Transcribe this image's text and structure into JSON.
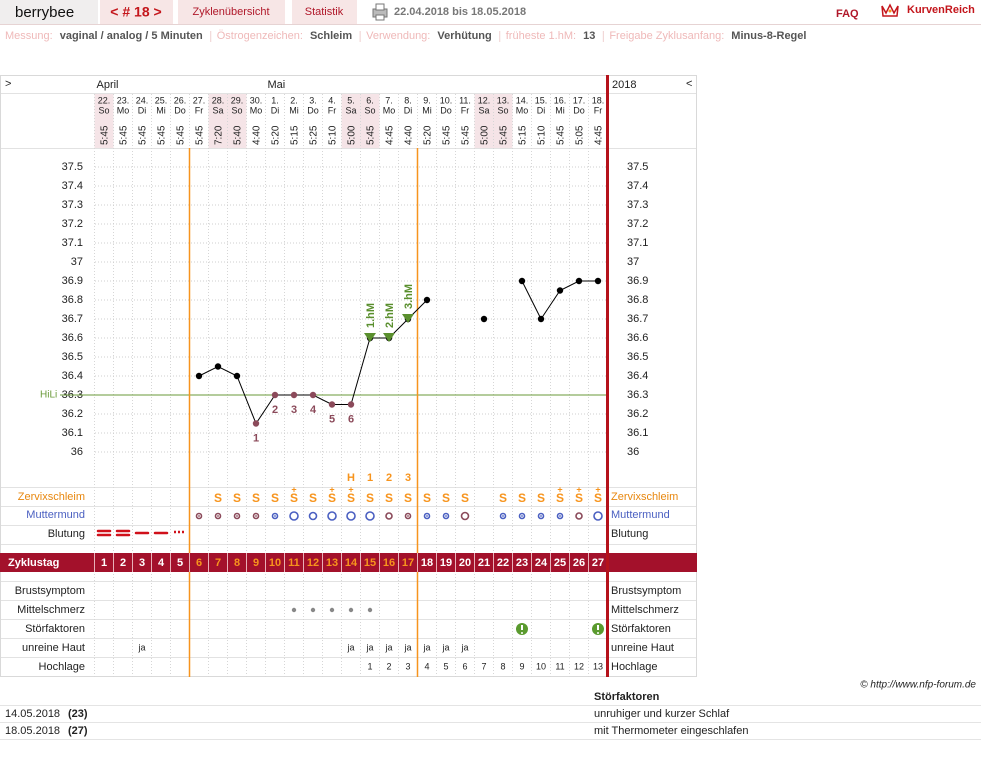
{
  "header": {
    "app": "berrybee",
    "cycle": "< # 18 >",
    "tabs": [
      "Zyklenübersicht",
      "Statistik"
    ],
    "date_range": "22.04.2018 bis 18.05.2018",
    "faq": "FAQ",
    "brand": "KurvenReich"
  },
  "settings": [
    {
      "label": "Messung:",
      "value": "vaginal / analog / 5 Minuten"
    },
    {
      "label": "Östrogenzeichen:",
      "value": "Schleim"
    },
    {
      "label": "Verwendung:",
      "value": "Verhütung"
    },
    {
      "label": "früheste 1.hM:",
      "value": "13"
    },
    {
      "label": "Freigabe Zyklusanfang:",
      "value": "Minus-8-Regel"
    }
  ],
  "chart_data": {
    "type": "line",
    "nav": [
      ">",
      "<"
    ],
    "year": "2018",
    "months": [
      {
        "name": "April",
        "days": [
          {
            "date": "22.",
            "weekday": "So",
            "time": "5:45",
            "shaded": true
          },
          {
            "date": "23.",
            "weekday": "Mo",
            "time": "5:45",
            "shaded": false
          },
          {
            "date": "24.",
            "weekday": "Di",
            "time": "5:45",
            "shaded": false
          },
          {
            "date": "25.",
            "weekday": "Mi",
            "time": "5:45",
            "shaded": false
          },
          {
            "date": "26.",
            "weekday": "Do",
            "time": "5:45",
            "shaded": false
          },
          {
            "date": "27.",
            "weekday": "Fr",
            "time": "5:45",
            "shaded": false
          },
          {
            "date": "28.",
            "weekday": "Sa",
            "time": "7:20",
            "shaded": true
          },
          {
            "date": "29.",
            "weekday": "So",
            "time": "5:40",
            "shaded": true
          },
          {
            "date": "30.",
            "weekday": "Mo",
            "time": "4:40",
            "shaded": false
          }
        ]
      },
      {
        "name": "Mai",
        "days": [
          {
            "date": "1.",
            "weekday": "Di",
            "time": "5:20",
            "shaded": false
          },
          {
            "date": "2.",
            "weekday": "Mi",
            "time": "5:15",
            "shaded": false
          },
          {
            "date": "3.",
            "weekday": "Do",
            "time": "5:25",
            "shaded": false
          },
          {
            "date": "4.",
            "weekday": "Fr",
            "time": "5:10",
            "shaded": false
          },
          {
            "date": "5.",
            "weekday": "Sa",
            "time": "5:00",
            "shaded": true
          },
          {
            "date": "6.",
            "weekday": "So",
            "time": "5:45",
            "shaded": true
          },
          {
            "date": "7.",
            "weekday": "Mo",
            "time": "4:45",
            "shaded": false
          },
          {
            "date": "8.",
            "weekday": "Di",
            "time": "4:40",
            "shaded": false
          },
          {
            "date": "9.",
            "weekday": "Mi",
            "time": "5:20",
            "shaded": false
          },
          {
            "date": "10.",
            "weekday": "Do",
            "time": "5:45",
            "shaded": false
          },
          {
            "date": "11.",
            "weekday": "Fr",
            "time": "5:45",
            "shaded": false
          },
          {
            "date": "12.",
            "weekday": "Sa",
            "time": "5:00",
            "shaded": true
          },
          {
            "date": "13.",
            "weekday": "So",
            "time": "5:45",
            "shaded": true
          },
          {
            "date": "14.",
            "weekday": "Mo",
            "time": "5:15",
            "shaded": false
          },
          {
            "date": "15.",
            "weekday": "Di",
            "time": "5:10",
            "shaded": false
          },
          {
            "date": "16.",
            "weekday": "Mi",
            "time": "5:45",
            "shaded": false
          },
          {
            "date": "17.",
            "weekday": "Do",
            "time": "5:05",
            "shaded": false
          },
          {
            "date": "18.",
            "weekday": "Fr",
            "time": "4:45",
            "shaded": false
          }
        ]
      }
    ],
    "ylim": [
      35.9,
      37.6
    ],
    "yticks": [
      36,
      36.1,
      36.2,
      36.3,
      36.4,
      36.5,
      36.6,
      36.7,
      36.8,
      36.9,
      37,
      37.1,
      37.2,
      37.3,
      37.4,
      37.5
    ],
    "grid": true,
    "color": "#000000",
    "low_color": "#8b4a5a",
    "hm_color": "#5a8f2e",
    "values": [
      null,
      null,
      null,
      null,
      null,
      36.4,
      36.45,
      36.4,
      36.15,
      36.3,
      36.3,
      36.3,
      36.25,
      36.25,
      36.6,
      36.6,
      36.7,
      36.8,
      null,
      null,
      36.7,
      null,
      36.9,
      36.7,
      36.85,
      36.9,
      36.9
    ],
    "low_labels": [
      null,
      null,
      null,
      null,
      null,
      null,
      null,
      null,
      "1",
      "2",
      "3",
      "4",
      "5",
      "6",
      null,
      null,
      null,
      null,
      null,
      null,
      null,
      null,
      null,
      null,
      null,
      null,
      null
    ],
    "high_labels": [
      null,
      null,
      null,
      null,
      null,
      null,
      null,
      null,
      null,
      null,
      null,
      null,
      null,
      null,
      "1.hM",
      "2.hM",
      "3.hM",
      null,
      null,
      null,
      null,
      null,
      null,
      null,
      null,
      null,
      null
    ],
    "hili": {
      "label": "HiLi",
      "value": 36.3,
      "color": "#6a9a3a"
    },
    "peak_labels": [
      null,
      null,
      null,
      null,
      null,
      null,
      null,
      null,
      null,
      null,
      null,
      null,
      null,
      "H",
      "1",
      "2",
      "3",
      null,
      null,
      null,
      null,
      null,
      null,
      null,
      null,
      null,
      null
    ],
    "row_labels": {
      "mucus": "Zervixschleim",
      "cervix": "Muttermund",
      "bleeding": "Blutung",
      "cycle_day": "Zyklustag",
      "breast": "Brustsymptom",
      "pain": "Mittelschmerz",
      "disturbances": "Störfaktoren",
      "skin": "unreine Haut",
      "high": "Hochlage"
    },
    "mucus": [
      null,
      null,
      null,
      null,
      null,
      null,
      {
        "sign": "S"
      },
      {
        "sign": "S"
      },
      {
        "sign": "S"
      },
      {
        "sign": "S"
      },
      {
        "sign": "S",
        "mark": "+"
      },
      {
        "sign": "S"
      },
      {
        "sign": "S",
        "mark": "+"
      },
      {
        "sign": "S",
        "mark": "+"
      },
      {
        "sign": "S"
      },
      {
        "sign": "S"
      },
      {
        "sign": "S"
      },
      {
        "sign": "S"
      },
      {
        "sign": "S"
      },
      {
        "sign": "S"
      },
      null,
      {
        "sign": "S"
      },
      {
        "sign": "S"
      },
      {
        "sign": "S"
      },
      {
        "sign": "S",
        "mark": "+"
      },
      {
        "sign": "S",
        "mark": "+"
      },
      {
        "sign": "S",
        "mark": "+"
      }
    ],
    "cycle_days": [
      1,
      2,
      3,
      4,
      5,
      6,
      7,
      8,
      9,
      10,
      11,
      12,
      13,
      14,
      15,
      16,
      17,
      18,
      19,
      20,
      21,
      22,
      23,
      24,
      25,
      26,
      27
    ],
    "fertile": [
      false,
      false,
      false,
      false,
      false,
      true,
      true,
      true,
      true,
      true,
      true,
      true,
      true,
      true,
      true,
      true,
      true,
      false,
      false,
      false,
      false,
      false,
      false,
      false,
      false,
      false,
      false
    ],
    "fertile_color": "#f7941d",
    "band_color": "#a3112b",
    "skin": [
      null,
      null,
      "ja",
      null,
      null,
      null,
      null,
      null,
      null,
      null,
      null,
      null,
      null,
      "ja",
      "ja",
      "ja",
      "ja",
      "ja",
      "ja",
      "ja",
      null,
      null,
      null,
      null,
      null,
      null,
      null
    ],
    "high_days": [
      null,
      null,
      null,
      null,
      null,
      null,
      null,
      null,
      null,
      null,
      null,
      null,
      null,
      null,
      1,
      2,
      3,
      4,
      5,
      6,
      7,
      8,
      9,
      10,
      11,
      12,
      13
    ]
  },
  "notes": {
    "copyright": "© http://www.nfp-forum.de",
    "heading": "Störfaktoren",
    "rows": [
      {
        "date": "14.05.2018",
        "day": "(23)",
        "text": "unruhiger und kurzer Schlaf"
      },
      {
        "date": "18.05.2018",
        "day": "(27)",
        "text": "mit Thermometer eingeschlafen"
      }
    ]
  }
}
